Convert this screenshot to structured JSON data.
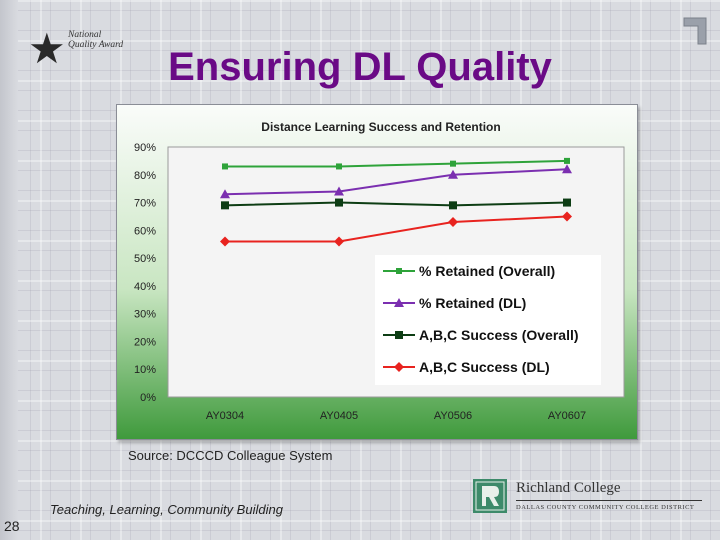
{
  "slide": {
    "title": "Ensuring DL Quality",
    "source": "Source: DCCCD Colleague System",
    "tagline": "Teaching, Learning, Community Building",
    "page_number": "28",
    "award_logo_text": "National Quality Award",
    "college_name": "Richland College",
    "college_district": "DALLAS COUNTY COMMUNITY COLLEGE DISTRICT",
    "title_color": "#6a0a86"
  },
  "chart_data": {
    "type": "line",
    "title": "Distance Learning Success and Retention",
    "categories": [
      "AY0304",
      "AY0405",
      "AY0506",
      "AY0607"
    ],
    "ylim": [
      0,
      90
    ],
    "yticks": [
      "0%",
      "10%",
      "20%",
      "30%",
      "40%",
      "50%",
      "60%",
      "70%",
      "80%",
      "90%"
    ],
    "grid": false,
    "legend_placement": "right-inside",
    "series": [
      {
        "name": "% Retained (Overall)",
        "values": [
          83,
          83,
          84,
          85
        ],
        "color": "#2ea33a",
        "marker": "square"
      },
      {
        "name": "% Retained (DL)",
        "values": [
          73,
          74,
          80,
          82
        ],
        "color": "#7b2fb0",
        "marker": "triangle"
      },
      {
        "name": "A,B,C Success (Overall)",
        "values": [
          69,
          70,
          69,
          70
        ],
        "color": "#0d3d14",
        "marker": "square"
      },
      {
        "name": "A,B,C Success (DL)",
        "values": [
          56,
          56,
          63,
          65
        ],
        "color": "#e8231f",
        "marker": "diamond"
      }
    ]
  }
}
